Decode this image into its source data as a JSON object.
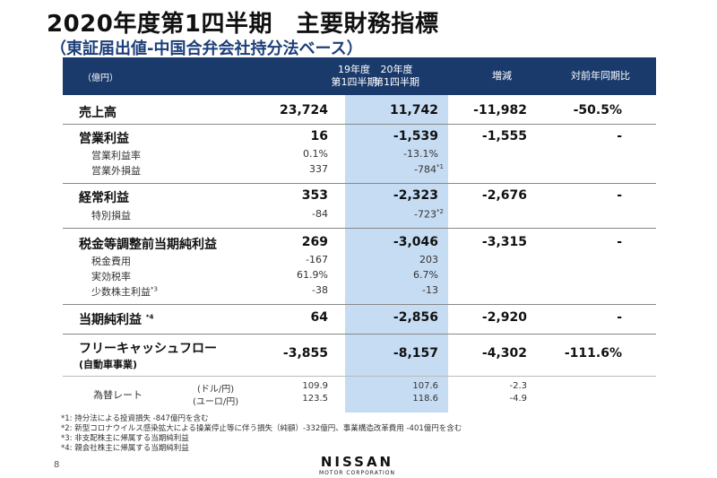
{
  "title": "2020年度第1四半期　主要財務指標",
  "subtitle": "（東証届出値-中国合弁会社持分法ベース）",
  "header": {
    "unit": "（億円）",
    "col1_line1": "19年度",
    "col1_line2": "第1四半期",
    "col2_line1": "20年度",
    "col2_line2": "第1四半期",
    "col3": "増減",
    "col4": "対前年同期比"
  },
  "rows": {
    "sales": {
      "label": "売上高",
      "v1": "23,724",
      "v2": "11,742",
      "v3": "-11,982",
      "v4": "-50.5%"
    },
    "op": {
      "label": "営業利益",
      "v1": "16",
      "v2": "-1,539",
      "v3": "-1,555",
      "v4": "-",
      "sub1": {
        "label": "営業利益率",
        "v1": "0.1%",
        "v2": "-13.1%"
      },
      "sub2": {
        "label": "営業外損益",
        "v1": "337",
        "v2": "-784",
        "note": "*1"
      }
    },
    "ord": {
      "label": "経常利益",
      "v1": "353",
      "v2": "-2,323",
      "v3": "-2,676",
      "v4": "-",
      "sub1": {
        "label": "特別損益",
        "v1": "-84",
        "v2": "-723",
        "note": "*2"
      }
    },
    "pretax": {
      "label": "税金等調整前当期純利益",
      "v1": "269",
      "v2": "-3,046",
      "v3": "-3,315",
      "v4": "-",
      "sub1": {
        "label": "税金費用",
        "v1": "-167",
        "v2": "203"
      },
      "sub2": {
        "label": "実効税率",
        "v1": "61.9%",
        "v2": "6.7%"
      },
      "sub3": {
        "label": "少数株主利益",
        "note": "*3",
        "v1": "-38",
        "v2": "-13"
      }
    },
    "net": {
      "label": "当期純利益",
      "note": "*4",
      "v1": "64",
      "v2": "-2,856",
      "v3": "-2,920",
      "v4": "-"
    },
    "fcf": {
      "label": "フリーキャッシュフロー",
      "sublabel": "(自動車事業)",
      "v1": "-3,855",
      "v2": "-8,157",
      "v3": "-4,302",
      "v4": "-111.6%"
    },
    "fx": {
      "label": "為替レート",
      "usd": {
        "unit": "(ドル/円)",
        "v1": "109.9",
        "v2": "107.6",
        "v3": "-2.3"
      },
      "eur": {
        "unit": "(ユーロ/円)",
        "v1": "123.5",
        "v2": "118.6",
        "v3": "-4.9"
      }
    }
  },
  "notes": [
    "*1: 持分法による投資損失 -847億円を含む",
    "*2: 新型コロナウイルス感染拡大による操業停止等に伴う損失（純額）-332億円、事業構造改革費用 -401億円を含む",
    "*3: 非支配株主に帰属する当期純利益",
    "*4: 親会社株主に帰属する当期純利益"
  ],
  "page_number": "8",
  "logo": {
    "name": "NISSAN",
    "sub": "MOTOR CORPORATION"
  }
}
